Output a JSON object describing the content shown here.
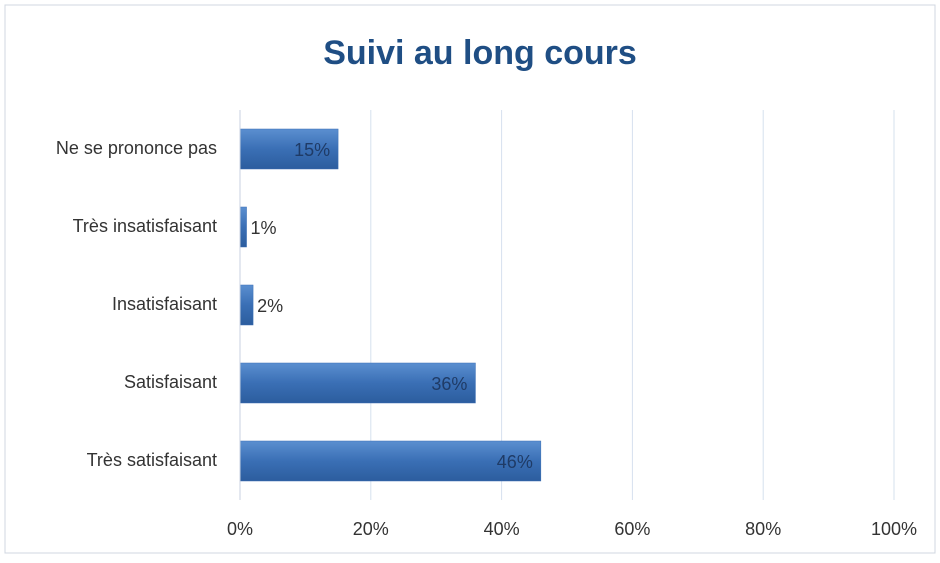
{
  "chart_data": {
    "type": "hbar",
    "title": "Suivi au long cours",
    "categories": [
      "Ne se prononce pas",
      "Très insatisfaisant",
      "Insatisfaisant",
      "Satisfaisant",
      "Très satisfaisant"
    ],
    "values": [
      15,
      1,
      2,
      36,
      46
    ],
    "value_labels": [
      "15%",
      "1%",
      "2%",
      "36%",
      "46%"
    ],
    "color": "#3a6fb5",
    "xlim": [
      0,
      100
    ],
    "xticks": [
      {
        "value": 0,
        "label": "0%"
      },
      {
        "value": 20,
        "label": "20%"
      },
      {
        "value": 40,
        "label": "40%"
      },
      {
        "value": 60,
        "label": "60%"
      },
      {
        "value": 80,
        "label": "80%"
      },
      {
        "value": 100,
        "label": "100%"
      }
    ],
    "grid": true
  }
}
